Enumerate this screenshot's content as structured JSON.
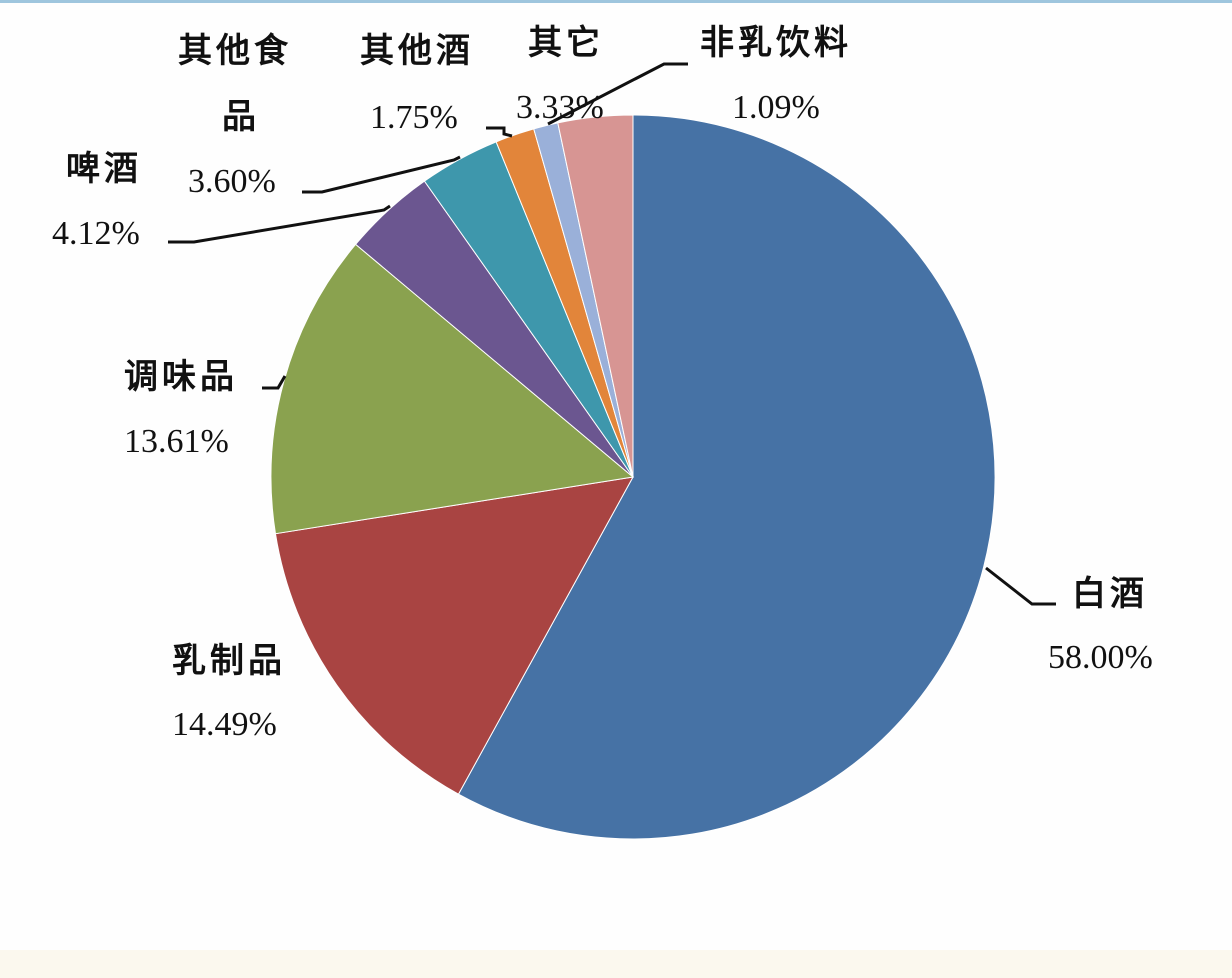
{
  "chart_data": {
    "type": "pie",
    "title": "",
    "start_angle_deg": 0,
    "direction": "clockwise",
    "slices": [
      {
        "label": "白酒",
        "value": 58.0,
        "display": "58.00%",
        "color": "#4672a5"
      },
      {
        "label": "乳制品",
        "value": 14.49,
        "display": "14.49%",
        "color": "#a94442"
      },
      {
        "label": "调味品",
        "value": 13.61,
        "display": "13.61%",
        "color": "#8aa24f"
      },
      {
        "label": "啤酒",
        "value": 4.12,
        "display": "4.12%",
        "color": "#6b5690"
      },
      {
        "label": "其他食品",
        "label_lines": [
          "其他食",
          "品"
        ],
        "value": 3.6,
        "display": "3.60%",
        "color": "#3e97ac"
      },
      {
        "label": "其他酒",
        "value": 1.75,
        "display": "1.75%",
        "color": "#e2853a"
      },
      {
        "label": "非乳饮料",
        "value": 1.09,
        "display": "1.09%",
        "color": "#9ab0d9"
      },
      {
        "label": "其它",
        "value": 3.33,
        "display": "3.33%",
        "color": "#d79593"
      }
    ]
  }
}
